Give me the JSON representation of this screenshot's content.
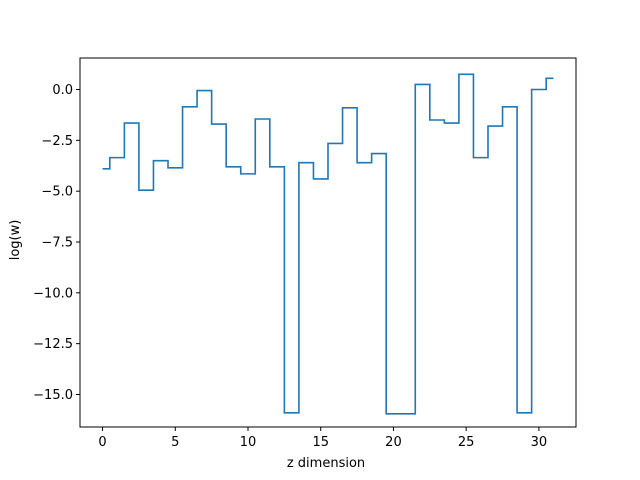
{
  "chart_data": {
    "type": "line",
    "drawstyle": "steps-mid",
    "title": "",
    "xlabel": "z dimension",
    "ylabel": "log(w)",
    "xlim": [
      -1.55,
      32.55
    ],
    "ylim": [
      -16.6,
      1.55
    ],
    "xticks": [
      0,
      5,
      10,
      15,
      20,
      25,
      30
    ],
    "xtick_labels": [
      "0",
      "5",
      "10",
      "15",
      "20",
      "25",
      "30"
    ],
    "yticks": [
      0,
      -2.5,
      -5,
      -7.5,
      -10,
      -12.5,
      -15
    ],
    "ytick_labels": [
      "0.0",
      "−2.5",
      "−5.0",
      "−7.5",
      "−10.0",
      "−12.5",
      "−15.0"
    ],
    "grid": false,
    "legend": "none",
    "series": [
      {
        "color": "#1f77b4",
        "x": [
          0,
          1,
          2,
          3,
          4,
          5,
          6,
          7,
          8,
          9,
          10,
          11,
          12,
          13,
          14,
          15,
          16,
          17,
          18,
          19,
          20,
          21,
          22,
          23,
          24,
          25,
          26,
          27,
          28,
          29,
          30,
          31
        ],
        "values": [
          -3.9,
          -3.35,
          -1.65,
          -4.95,
          -3.5,
          -3.85,
          -0.85,
          -0.05,
          -1.7,
          -3.8,
          -4.15,
          -1.45,
          -3.8,
          -15.9,
          -3.6,
          -4.4,
          -2.65,
          -0.9,
          -3.6,
          -3.15,
          -15.95,
          -15.95,
          0.25,
          -1.5,
          -1.65,
          0.75,
          -3.35,
          -1.8,
          -0.85,
          -15.9,
          0.0,
          0.55
        ]
      }
    ]
  }
}
